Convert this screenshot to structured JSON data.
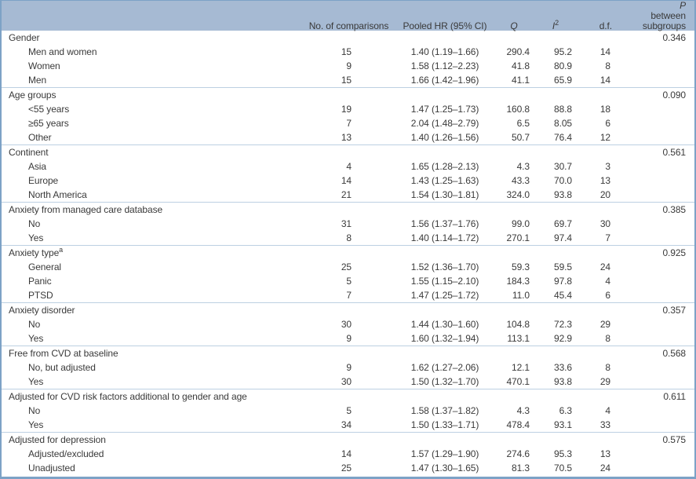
{
  "table": {
    "colors": {
      "header_bg": "#a6bad3",
      "border": "#7da2c6",
      "separator": "#bdd0e2",
      "text": "#3a3a3a"
    },
    "header": {
      "comparisons": "No. of comparisons",
      "pooled_hr": "Pooled HR (95% CI)",
      "q": "Q",
      "i2_base": "I",
      "i2_sup": "2",
      "df": "d.f.",
      "p_italic": "P",
      "p_rest": " between",
      "p_line2": "subgroups"
    },
    "sections": [
      {
        "label": "Gender",
        "sup": "",
        "p_between": "0.346",
        "rows": [
          {
            "label": "Men and women",
            "comparisons": "15",
            "pooled_hr": "1.40 (1.19–1.66)",
            "q": "290.4",
            "i2": "95.2",
            "df": "14"
          },
          {
            "label": "Women",
            "comparisons": "9",
            "pooled_hr": "1.58 (1.12–2.23)",
            "q": "41.8",
            "i2": "80.9",
            "df": "8"
          },
          {
            "label": "Men",
            "comparisons": "15",
            "pooled_hr": "1.66 (1.42–1.96)",
            "q": "41.1",
            "i2": "65.9",
            "df": "14"
          }
        ]
      },
      {
        "label": "Age groups",
        "sup": "",
        "p_between": "0.090",
        "rows": [
          {
            "label": "<55 years",
            "comparisons": "19",
            "pooled_hr": "1.47 (1.25–1.73)",
            "q": "160.8",
            "i2": "88.8",
            "df": "18"
          },
          {
            "label": "≥65 years",
            "comparisons": "7",
            "pooled_hr": "2.04 (1.48–2.79)",
            "q": "6.5",
            "i2": "8.05",
            "df": "6"
          },
          {
            "label": "Other",
            "comparisons": "13",
            "pooled_hr": "1.40 (1.26–1.56)",
            "q": "50.7",
            "i2": "76.4",
            "df": "12"
          }
        ]
      },
      {
        "label": "Continent",
        "sup": "",
        "p_between": "0.561",
        "rows": [
          {
            "label": "Asia",
            "comparisons": "4",
            "pooled_hr": "1.65 (1.28–2.13)",
            "q": "4.3",
            "i2": "30.7",
            "df": "3"
          },
          {
            "label": "Europe",
            "comparisons": "14",
            "pooled_hr": "1.43 (1.25–1.63)",
            "q": "43.3",
            "i2": "70.0",
            "df": "13"
          },
          {
            "label": "North America",
            "comparisons": "21",
            "pooled_hr": "1.54 (1.30–1.81)",
            "q": "324.0",
            "i2": "93.8",
            "df": "20"
          }
        ]
      },
      {
        "label": "Anxiety from managed care database",
        "sup": "",
        "p_between": "0.385",
        "rows": [
          {
            "label": "No",
            "comparisons": "31",
            "pooled_hr": "1.56 (1.37–1.76)",
            "q": "99.0",
            "i2": "69.7",
            "df": "30"
          },
          {
            "label": "Yes",
            "comparisons": "8",
            "pooled_hr": "1.40 (1.14–1.72)",
            "q": "270.1",
            "i2": "97.4",
            "df": "7"
          }
        ]
      },
      {
        "label": "Anxiety type",
        "sup": "a",
        "p_between": "0.925",
        "rows": [
          {
            "label": "General",
            "comparisons": "25",
            "pooled_hr": "1.52 (1.36–1.70)",
            "q": "59.3",
            "i2": "59.5",
            "df": "24"
          },
          {
            "label": "Panic",
            "comparisons": "5",
            "pooled_hr": "1.55 (1.15–2.10)",
            "q": "184.3",
            "i2": "97.8",
            "df": "4"
          },
          {
            "label": "PTSD",
            "comparisons": "7",
            "pooled_hr": "1.47 (1.25–1.72)",
            "q": "11.0",
            "i2": "45.4",
            "df": "6"
          }
        ]
      },
      {
        "label": "Anxiety disorder",
        "sup": "",
        "p_between": "0.357",
        "rows": [
          {
            "label": "No",
            "comparisons": "30",
            "pooled_hr": "1.44 (1.30–1.60)",
            "q": "104.8",
            "i2": "72.3",
            "df": "29"
          },
          {
            "label": "Yes",
            "comparisons": "9",
            "pooled_hr": "1.60 (1.32–1.94)",
            "q": "113.1",
            "i2": "92.9",
            "df": "8"
          }
        ]
      },
      {
        "label": "Free from CVD at baseline",
        "sup": "",
        "p_between": "0.568",
        "rows": [
          {
            "label": "No, but adjusted",
            "comparisons": "9",
            "pooled_hr": "1.62 (1.27–2.06)",
            "q": "12.1",
            "i2": "33.6",
            "df": "8"
          },
          {
            "label": "Yes",
            "comparisons": "30",
            "pooled_hr": "1.50 (1.32–1.70)",
            "q": "470.1",
            "i2": "93.8",
            "df": "29"
          }
        ]
      },
      {
        "label": "Adjusted for CVD risk factors additional to gender and age",
        "sup": "",
        "p_between": "0.611",
        "rows": [
          {
            "label": "No",
            "comparisons": "5",
            "pooled_hr": "1.58 (1.37–1.82)",
            "q": "4.3",
            "i2": "6.3",
            "df": "4"
          },
          {
            "label": "Yes",
            "comparisons": "34",
            "pooled_hr": "1.50 (1.33–1.71)",
            "q": "478.4",
            "i2": "93.1",
            "df": "33"
          }
        ]
      },
      {
        "label": "Adjusted for depression",
        "sup": "",
        "p_between": "0.575",
        "rows": [
          {
            "label": "Adjusted/excluded",
            "comparisons": "14",
            "pooled_hr": "1.57 (1.29–1.90)",
            "q": "274.6",
            "i2": "95.3",
            "df": "13"
          },
          {
            "label": "Unadjusted",
            "comparisons": "25",
            "pooled_hr": "1.47 (1.30–1.65)",
            "q": "81.3",
            "i2": "70.5",
            "df": "24"
          }
        ]
      }
    ]
  }
}
